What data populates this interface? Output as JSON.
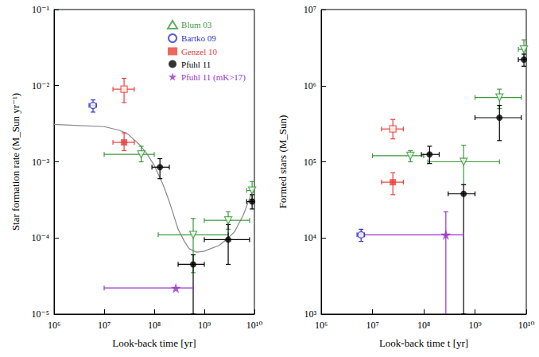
{
  "chart_data": [
    {
      "type": "scatter",
      "xlabel": "Look-back time [yr]",
      "ylabel": "Star formation rate (M_Sun yr⁻¹)",
      "log": true,
      "grid": false,
      "legend": "upper right",
      "xlim": [
        1000000,
        10000000000
      ],
      "ylim": [
        1e-05,
        0.1
      ],
      "xticks": [
        {
          "value": 1000000,
          "label": "10⁶"
        },
        {
          "value": 10000000,
          "label": "10⁷"
        },
        {
          "value": 100000000,
          "label": "10⁸"
        },
        {
          "value": 1000000000,
          "label": "10⁹"
        },
        {
          "value": 10000000000,
          "label": "10¹⁰"
        }
      ],
      "yticks": [
        {
          "value": 1e-05,
          "label": "10⁻⁵"
        },
        {
          "value": 0.0001,
          "label": "10⁻⁴"
        },
        {
          "value": 0.001,
          "label": "10⁻³"
        },
        {
          "value": 0.01,
          "label": "10⁻²"
        },
        {
          "value": 0.1,
          "label": "10⁻¹"
        }
      ],
      "series": [
        {
          "name": "Blum 03",
          "color": "#3a9a3a",
          "marker": "triangle-down-open",
          "x": [
            55000000,
            600000000,
            3000000000,
            9000000000
          ],
          "values": [
            0.00125,
            0.00011,
            0.00017,
            0.00042
          ],
          "x_lower": [
            10000000,
            120000000,
            1000000000,
            7000000000
          ],
          "x_upper": [
            100000000,
            3000000000,
            8000000000,
            10000000000
          ],
          "y_lower": [
            0.001,
            3.5e-05,
            0.00013,
            0.00032
          ],
          "y_upper": [
            0.0016,
            0.00018,
            0.00022,
            0.00055
          ]
        },
        {
          "name": "Bartko 09",
          "color": "#3333cc",
          "marker": "circle-open",
          "x": [
            6000000
          ],
          "values": [
            0.0055
          ],
          "x_lower": [
            5000000
          ],
          "x_upper": [
            7000000
          ],
          "y_lower": [
            0.0045
          ],
          "y_upper": [
            0.0065
          ]
        },
        {
          "name": "Genzel 10",
          "color": "#e8403a",
          "marker": "square",
          "x": [
            25000000
          ],
          "values": [
            0.0018
          ],
          "x_lower": [
            15000000
          ],
          "x_upper": [
            40000000
          ],
          "y_lower": [
            0.0014
          ],
          "y_upper": [
            0.0024
          ]
        },
        {
          "name": "Genzel 10",
          "color": "#e8403a",
          "marker": "square-open",
          "x": [
            25000000
          ],
          "values": [
            0.009
          ],
          "x_lower": [
            15000000
          ],
          "x_upper": [
            40000000
          ],
          "y_lower": [
            0.006
          ],
          "y_upper": [
            0.0125
          ]
        },
        {
          "name": "Pfuhl 11",
          "color": "#000000",
          "marker": "circle",
          "x": [
            130000000,
            600000000,
            3000000000,
            9000000000
          ],
          "values": [
            0.00085,
            4.5e-05,
            9.5e-05,
            0.0003
          ],
          "x_lower": [
            90000000,
            300000000,
            1000000000,
            7000000000
          ],
          "x_upper": [
            200000000,
            1000000000,
            8000000000,
            11000000000
          ],
          "y_lower": [
            0.0006,
            1e-05,
            4.5e-05,
            0.00024
          ],
          "y_upper": [
            0.0011,
            6e-05,
            0.00015,
            0.00037
          ]
        },
        {
          "name": "Pfuhl 11 (mK>17)",
          "color": "#9933cc",
          "marker": "star",
          "x": [
            270000000
          ],
          "values": [
            2.2e-05
          ],
          "x_lower": [
            10000000
          ],
          "x_upper": [
            600000000
          ],
          "y_lower": [
            null
          ],
          "y_upper": [
            null
          ]
        },
        {
          "type": "line",
          "color": "#888888",
          "line_style": "solid",
          "x": [
            1000000,
            3000000,
            10000000,
            20000000,
            30000000,
            50000000,
            70000000,
            100000000,
            150000000,
            200000000,
            300000000,
            400000000,
            500000000,
            700000000,
            1000000000,
            2000000000,
            3000000000,
            4000000000,
            6000000000,
            8000000000,
            10000000000
          ],
          "values": [
            0.0031,
            0.003,
            0.0029,
            0.0026,
            0.0023,
            0.0017,
            0.0013,
            0.0009,
            0.0005,
            0.0003,
            0.00013,
            9e-05,
            7.2e-05,
            6.5e-05,
            6.7e-05,
            8e-05,
            0.0001,
            0.00012,
            0.0002,
            0.00033,
            0.00048
          ]
        }
      ]
    },
    {
      "type": "scatter",
      "xlabel": "Look-back time t [yr]",
      "ylabel": "Formed stars (M_Sun)",
      "log": true,
      "grid": false,
      "xlim": [
        1000000,
        10000000000
      ],
      "ylim": [
        1000,
        10000000
      ],
      "xticks": [
        {
          "value": 1000000,
          "label": "10⁶"
        },
        {
          "value": 10000000,
          "label": "10⁷"
        },
        {
          "value": 100000000,
          "label": "10⁸"
        },
        {
          "value": 1000000000,
          "label": "10⁹"
        },
        {
          "value": 10000000000,
          "label": "10¹⁰"
        }
      ],
      "yticks": [
        {
          "value": 1000,
          "label": "10³"
        },
        {
          "value": 10000,
          "label": "10⁴"
        },
        {
          "value": 100000,
          "label": "10⁵"
        },
        {
          "value": 1000000,
          "label": "10⁶"
        },
        {
          "value": 10000000,
          "label": "10⁷"
        }
      ],
      "series": [
        {
          "name": "Blum 03",
          "color": "#3a9a3a",
          "marker": "triangle-down-open",
          "x": [
            55000000,
            600000000,
            3000000000,
            9000000000
          ],
          "values": [
            120000,
            100000,
            700000,
            3000000
          ],
          "x_lower": [
            10000000,
            120000000,
            1000000000,
            7000000000
          ],
          "x_upper": [
            100000000,
            3000000000,
            8000000000,
            10000000000
          ],
          "y_lower": [
            100000,
            50000,
            500000,
            2300000
          ],
          "y_upper": [
            140000,
            165000,
            900000,
            4000000
          ]
        },
        {
          "name": "Bartko 09",
          "color": "#3333cc",
          "marker": "circle-open",
          "x": [
            6000000
          ],
          "values": [
            11000
          ],
          "x_lower": [
            5000000
          ],
          "x_upper": [
            7000000
          ],
          "y_lower": [
            9000
          ],
          "y_upper": [
            13000
          ]
        },
        {
          "name": "Genzel 10",
          "color": "#e8403a",
          "marker": "square",
          "x": [
            25000000
          ],
          "values": [
            54000
          ],
          "x_lower": [
            15000000
          ],
          "x_upper": [
            40000000
          ],
          "y_lower": [
            37000
          ],
          "y_upper": [
            72000
          ]
        },
        {
          "name": "Genzel 10",
          "color": "#e8403a",
          "marker": "square-open",
          "x": [
            25000000
          ],
          "values": [
            270000
          ],
          "x_lower": [
            15000000
          ],
          "x_upper": [
            40000000
          ],
          "y_lower": [
            200000
          ],
          "y_upper": [
            360000
          ]
        },
        {
          "name": "Pfuhl 11",
          "color": "#000000",
          "marker": "circle",
          "x": [
            130000000,
            600000000,
            3000000000,
            9000000000
          ],
          "values": [
            125000,
            38000,
            380000,
            2200000
          ],
          "x_lower": [
            90000000,
            300000000,
            1000000000,
            7000000000
          ],
          "x_upper": [
            200000000,
            1000000000,
            8000000000,
            11000000000
          ],
          "y_lower": [
            95000,
            1000,
            190000,
            1800000
          ],
          "y_upper": [
            160000,
            50000,
            550000,
            2600000
          ]
        },
        {
          "name": "Pfuhl 11 (mK>17)",
          "color": "#9933cc",
          "marker": "star",
          "x": [
            270000000
          ],
          "values": [
            11000
          ],
          "x_lower": [
            6000000
          ],
          "x_upper": [
            600000000
          ],
          "y_lower": [
            1000
          ],
          "y_upper": [
            22000
          ]
        }
      ]
    }
  ]
}
